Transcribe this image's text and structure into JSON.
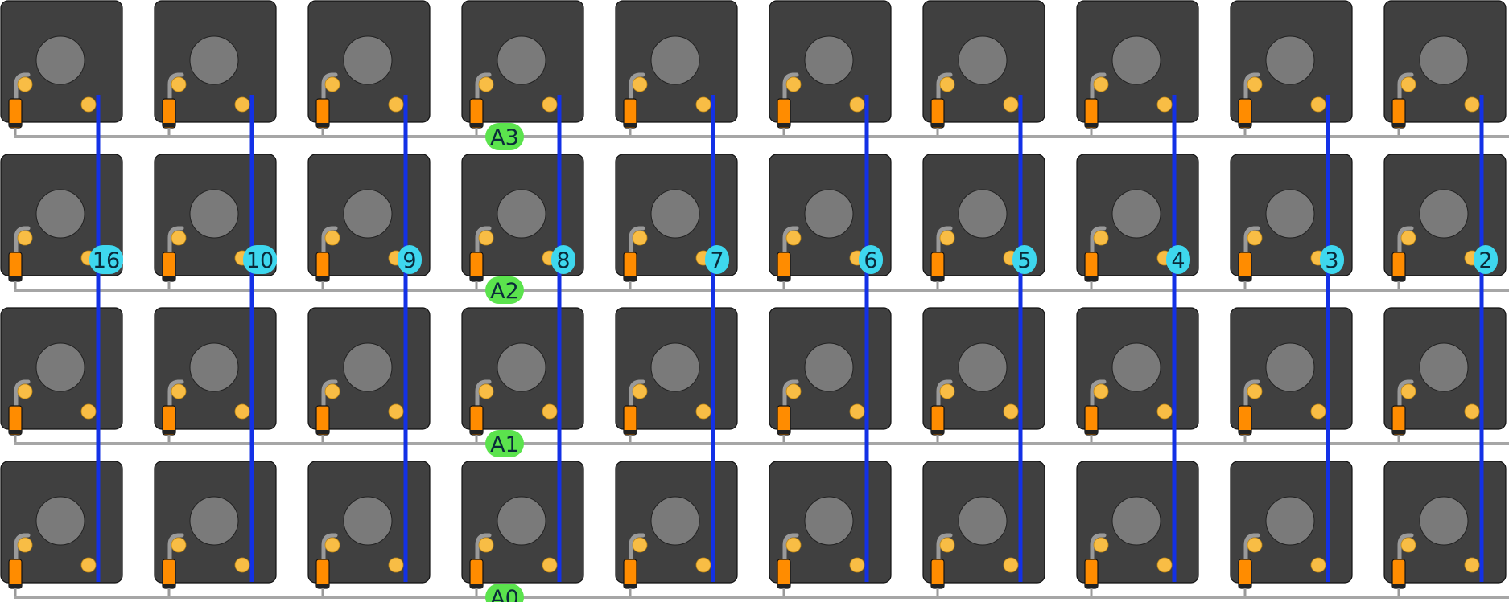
{
  "title": "",
  "grid": {
    "rows": 4,
    "columns": 10
  },
  "row_labels": [
    "A3",
    "A2",
    "A1",
    "A0"
  ],
  "column_labels": [
    "16",
    "10",
    "9",
    "8",
    "7",
    "6",
    "5",
    "4",
    "3",
    "2"
  ],
  "colors": {
    "switch_body": "#404040",
    "switch_cap": "#7a7a7a",
    "solder_pad": "#f8bd45",
    "diode_body": "#ff8c00",
    "diode_band": "#222222",
    "diode_lead": "#9a9a9a",
    "row_wire": "#a6a6a6",
    "column_wire": "#1331e6",
    "row_label_bg": "#5be34d",
    "column_label_bg": "#3ed7ee"
  },
  "components": {
    "switch_icon": "key-switch-icon",
    "diode_icon": "diode-icon"
  }
}
